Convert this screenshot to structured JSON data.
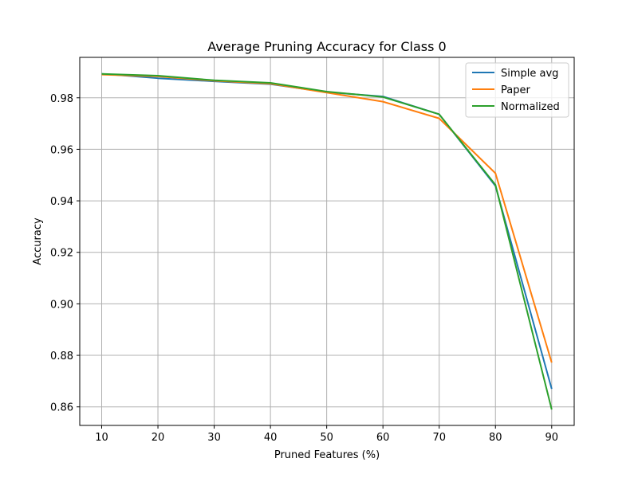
{
  "chart_data": {
    "type": "line",
    "title": "Average Pruning Accuracy for Class 0",
    "xlabel": "Pruned Features (%)",
    "ylabel": "Accuracy",
    "x": [
      10,
      20,
      30,
      40,
      50,
      60,
      70,
      80,
      90
    ],
    "x_ticks": [
      "10",
      "20",
      "30",
      "40",
      "50",
      "60",
      "70",
      "80",
      "90"
    ],
    "y_ticks": [
      "0.86",
      "0.88",
      "0.90",
      "0.92",
      "0.94",
      "0.96",
      "0.98"
    ],
    "xlim": [
      6.1,
      94.0
    ],
    "ylim": [
      0.8528,
      0.9957
    ],
    "grid": true,
    "legend_position": "top-right",
    "series": [
      {
        "name": "Simple avg",
        "color": "#1f77b4",
        "values": [
          0.9893,
          0.9876,
          0.9864,
          0.9853,
          0.9822,
          0.9805,
          0.9736,
          0.9458,
          0.867
        ]
      },
      {
        "name": "Paper",
        "color": "#ff7f0e",
        "values": [
          0.989,
          0.9883,
          0.9866,
          0.9855,
          0.982,
          0.9785,
          0.972,
          0.9507,
          0.8772
        ]
      },
      {
        "name": "Normalized",
        "color": "#2ca02c",
        "values": [
          0.9893,
          0.9886,
          0.9868,
          0.9858,
          0.9824,
          0.9803,
          0.9736,
          0.9462,
          0.859
        ]
      }
    ]
  }
}
